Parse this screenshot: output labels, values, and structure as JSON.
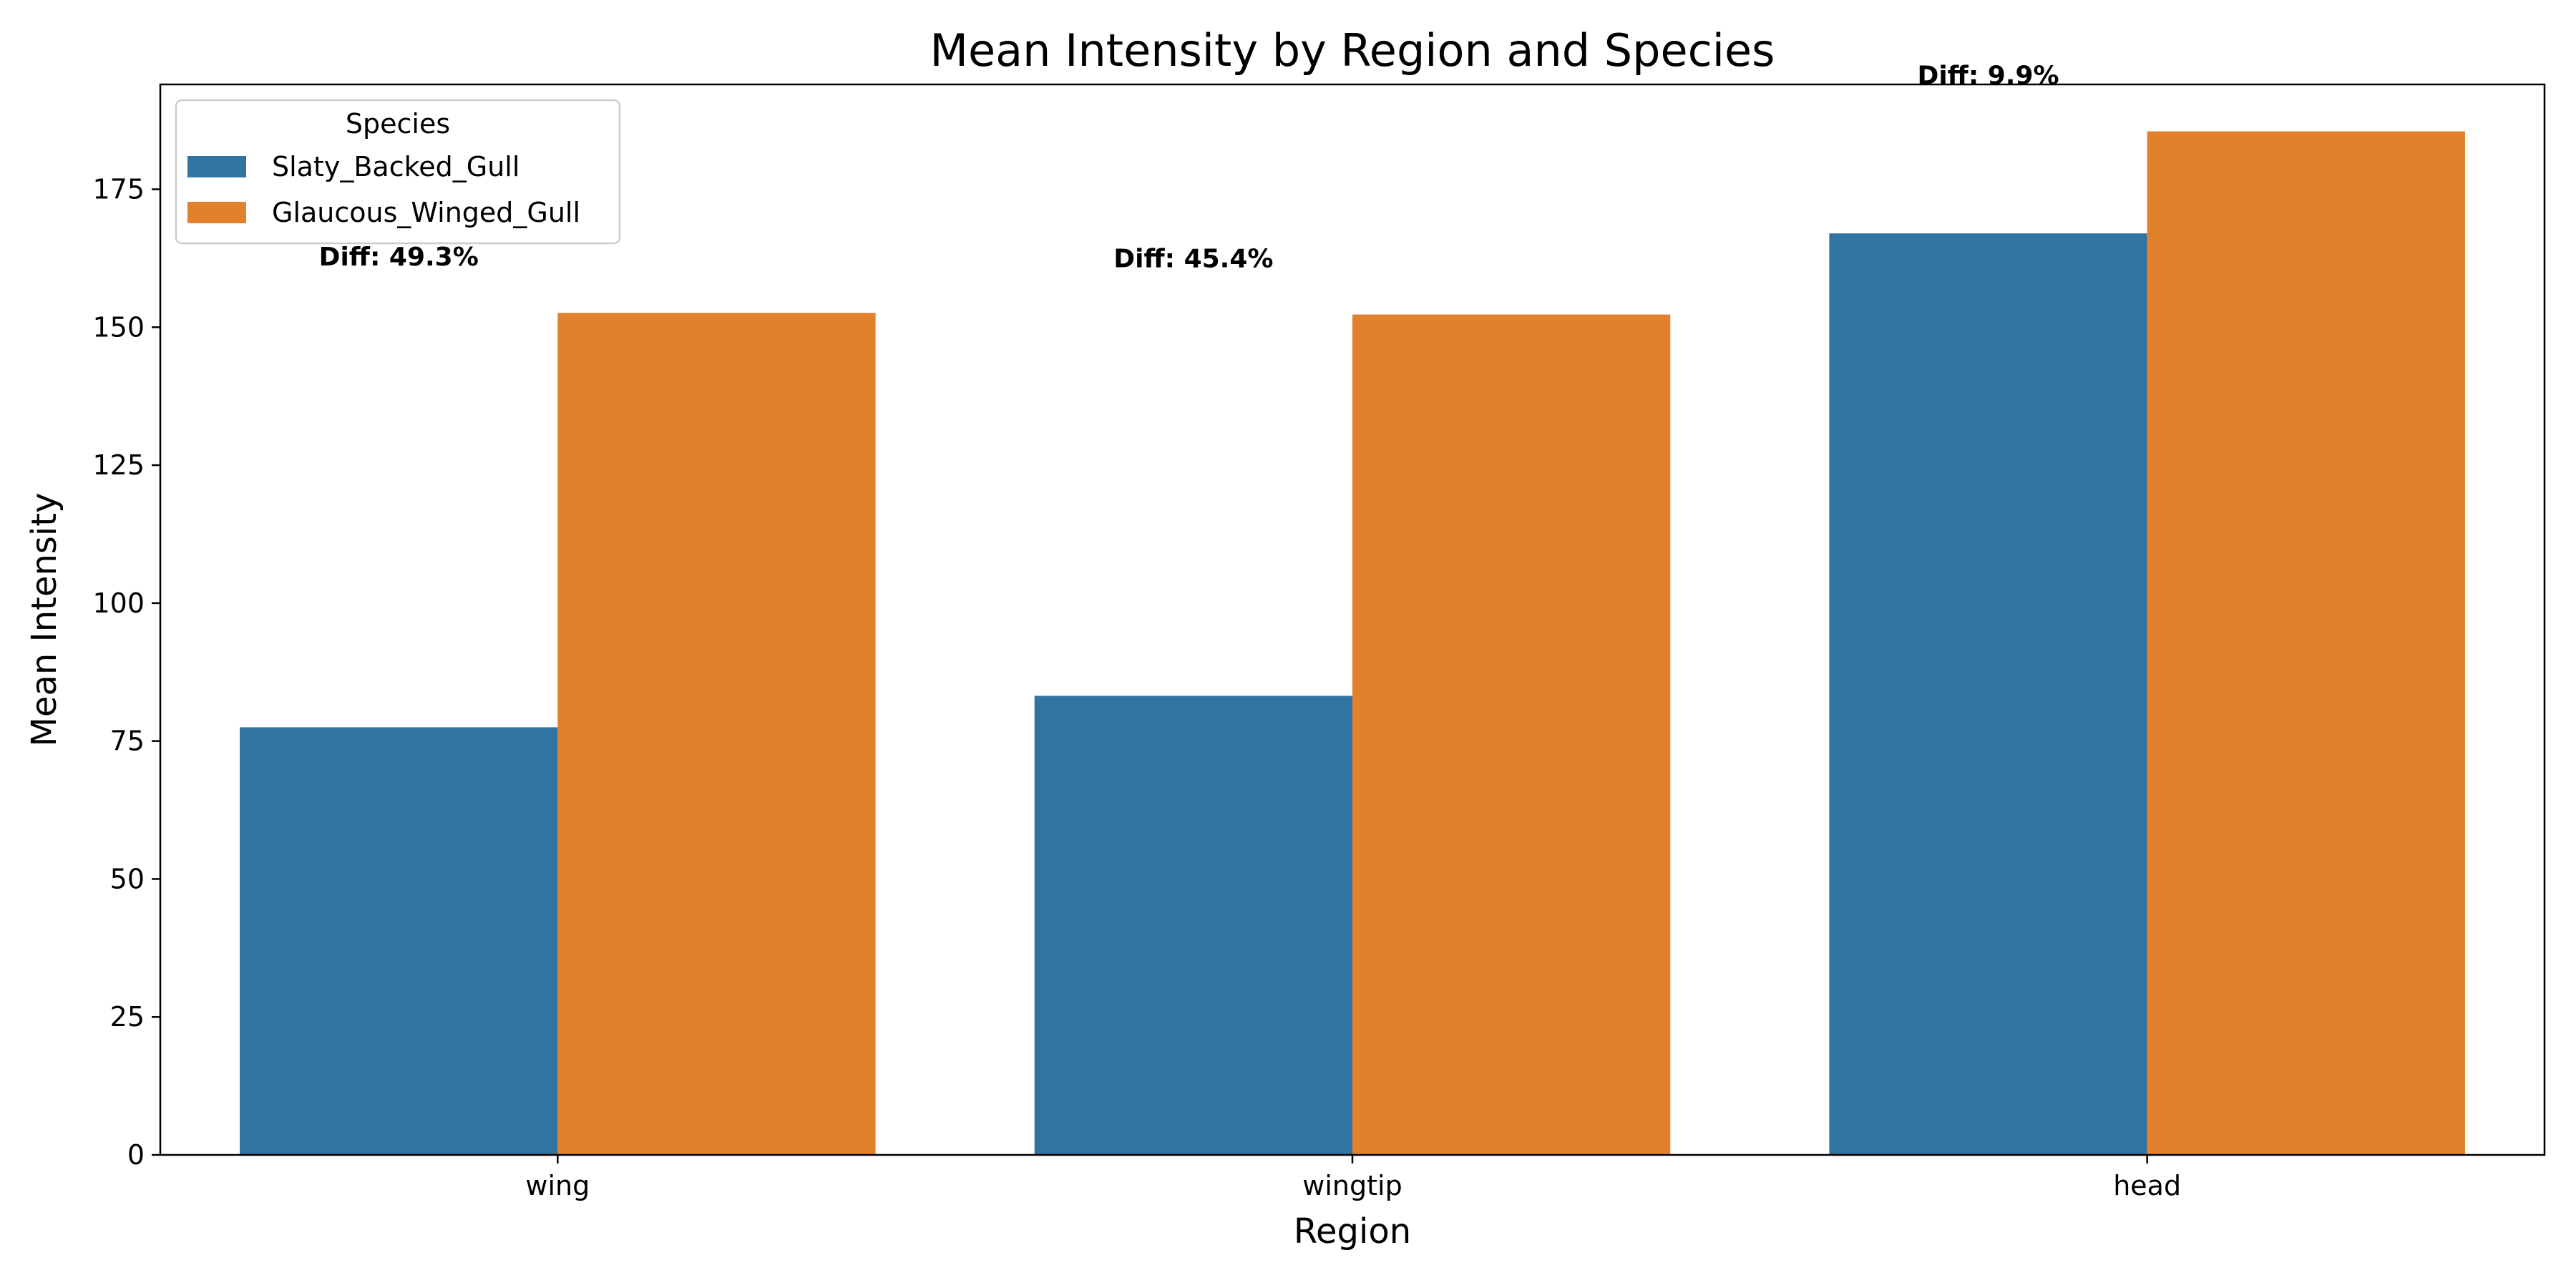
{
  "chart_data": {
    "type": "bar",
    "title": "Mean Intensity by Region and Species",
    "xlabel": "Region",
    "ylabel": "Mean Intensity",
    "categories": [
      "wing",
      "wingtip",
      "head"
    ],
    "ylim": [
      0,
      194
    ],
    "yticks": [
      0,
      25,
      50,
      75,
      100,
      125,
      150,
      175
    ],
    "series": [
      {
        "name": "Slaty_Backed_Gull",
        "color": "#3274a1",
        "values": [
          77.5,
          83.2,
          167.0
        ]
      },
      {
        "name": "Glaucous_Winged_Gull",
        "color": "#e1812c",
        "values": [
          152.6,
          152.3,
          185.5
        ]
      }
    ],
    "annotations": [
      "Diff: 49.3%",
      "Diff: 45.4%",
      "Diff: 9.9%"
    ],
    "legend": {
      "title": "Species",
      "position": "upper-left"
    },
    "grid": false
  }
}
